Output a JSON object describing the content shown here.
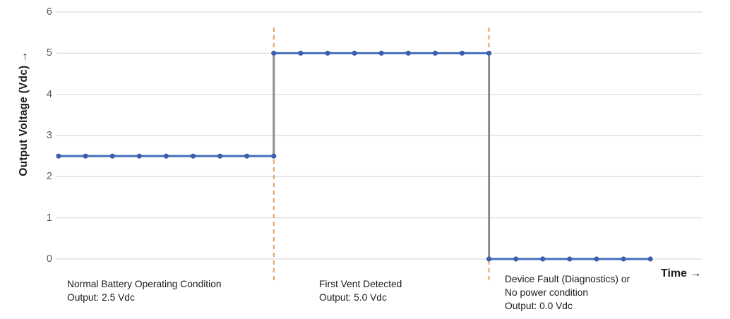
{
  "chart_data": {
    "type": "line",
    "title": "",
    "xlabel": "Time →",
    "ylabel": "Output Voltage (Vdc) →",
    "yticks": [
      6,
      5,
      4,
      3,
      2,
      1,
      0
    ],
    "ylim": [
      0,
      6
    ],
    "grid": "horizontal",
    "colors": {
      "line": "#4470BC",
      "marker": "#3D5FB0",
      "event_dash": "#E5A062",
      "step_connector": "#8C8C90",
      "gridline": "#D9D9D9",
      "tick_text": "#595959",
      "label_text": "#1b1b1b"
    },
    "series": [
      {
        "name": "Output Voltage (Vdc)",
        "segments": [
          {
            "value_vdc": 2.5,
            "t_start": 0,
            "t_end": 8
          },
          {
            "value_vdc": 5.0,
            "t_start": 8,
            "t_end": 16
          },
          {
            "value_vdc": 0.0,
            "t_start": 16,
            "t_end": 22
          }
        ]
      }
    ],
    "event_lines": [
      {
        "t": 8
      },
      {
        "t": 16
      }
    ],
    "step_connectors": [
      {
        "t": 8,
        "from_vdc": 2.5,
        "to_vdc": 5.0
      },
      {
        "t": 16,
        "from_vdc": 5.0,
        "to_vdc": 0.0
      }
    ],
    "annotations": [
      {
        "lines": [
          "Normal Battery Operating Condition",
          "Output: 2.5 Vdc"
        ]
      },
      {
        "lines": [
          "First Vent Detected",
          "Output: 5.0 Vdc"
        ]
      },
      {
        "lines": [
          "Device Fault (Diagnostics) or",
          "No power condition",
          "Output: 0.0 Vdc"
        ]
      }
    ]
  }
}
